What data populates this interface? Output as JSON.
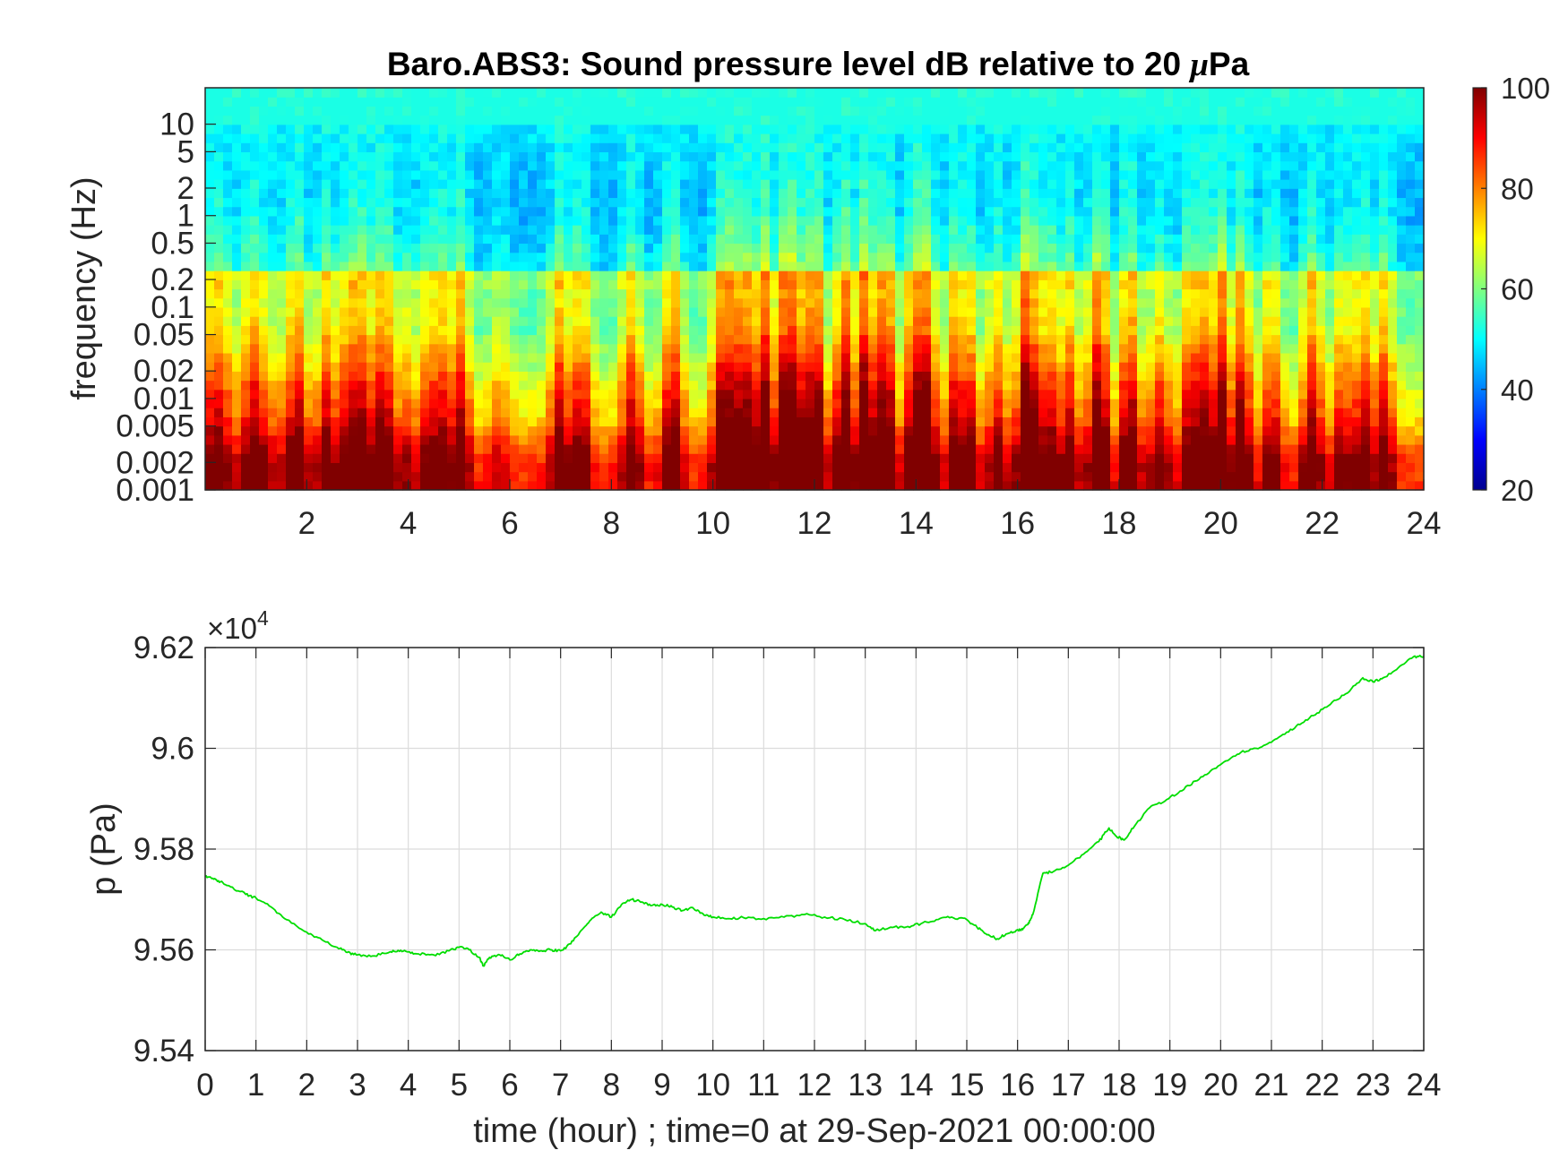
{
  "figure": {
    "background": "#ffffff"
  },
  "chart_data": [
    {
      "type": "heatmap",
      "title": "Baro.ABS3: Sound pressure level dB relative to 20 μPa",
      "title_parts": [
        "Baro.ABS3: Sound pressure level dB relative to 20 ",
        "μ",
        "Pa"
      ],
      "ylabel": "frequency (Hz)",
      "xlabel": "",
      "x_range": [
        0,
        24
      ],
      "x_ticks": [
        2,
        4,
        6,
        8,
        10,
        12,
        14,
        16,
        18,
        20,
        22,
        24
      ],
      "y_scale": "log",
      "y_range": [
        0.001,
        25
      ],
      "y_ticks": [
        0.001,
        0.002,
        0.005,
        0.01,
        0.02,
        0.05,
        0.1,
        0.2,
        0.5,
        1,
        2,
        5,
        10
      ],
      "y_tick_labels": [
        "0.001",
        "0.002",
        "0.005",
        "0.01",
        "0.02",
        "0.05",
        "0.1",
        "0.2",
        "0.5",
        "1",
        "2",
        "5",
        "10"
      ],
      "colormap": "jet",
      "colorbar": {
        "range": [
          20,
          100
        ],
        "ticks": [
          20,
          40,
          60,
          80,
          100
        ]
      },
      "grid": false,
      "activity_hours": [
        0.2,
        0.4,
        0.8,
        1.0,
        1.4,
        1.8,
        2.4,
        2.8,
        3.0,
        3.4,
        3.6,
        4.0,
        4.4,
        4.6,
        5.0,
        5.8,
        7.0,
        7.4,
        8.4,
        9.2,
        10.2,
        10.4,
        10.6,
        11.0,
        11.4,
        11.6,
        12.0,
        12.6,
        13.0,
        13.4,
        14.0,
        14.2,
        14.8,
        15.0,
        15.6,
        16.2,
        16.6,
        17.0,
        17.6,
        18.2,
        18.8,
        19.4,
        19.6,
        20.0,
        20.4,
        21.0,
        21.8,
        22.4,
        22.8,
        23.2
      ],
      "activity_levels": [
        82,
        72,
        74,
        82,
        68,
        84,
        80,
        78,
        88,
        84,
        80,
        70,
        76,
        82,
        84,
        66,
        82,
        80,
        80,
        84,
        90,
        94,
        92,
        94,
        92,
        96,
        94,
        92,
        96,
        92,
        94,
        92,
        84,
        82,
        76,
        98,
        82,
        80,
        92,
        86,
        76,
        82,
        88,
        92,
        86,
        78,
        82,
        76,
        80,
        80
      ]
    },
    {
      "type": "line",
      "title": "",
      "xlabel": "time (hour) ; time=0 at 29-Sep-2021 00:00:00",
      "ylabel": "p (Pa)",
      "x_range": [
        0,
        24
      ],
      "x_ticks": [
        0,
        1,
        2,
        3,
        4,
        5,
        6,
        7,
        8,
        9,
        10,
        11,
        12,
        13,
        14,
        15,
        16,
        17,
        18,
        19,
        20,
        21,
        22,
        23,
        24
      ],
      "y_range": [
        95400,
        96200
      ],
      "y_ticks": [
        95400,
        95600,
        95800,
        96000,
        96200
      ],
      "y_tick_labels": [
        "9.54",
        "9.56",
        "9.58",
        "9.6",
        "9.62"
      ],
      "y_exponent": "4",
      "y_exponent_prefix": "×10",
      "grid": true,
      "series": [
        {
          "color": "#00dd00",
          "x": [
            0,
            0.15,
            0.3,
            0.5,
            0.8,
            1,
            1.3,
            1.6,
            2,
            2.3,
            2.6,
            2.8,
            3,
            3.3,
            3.6,
            3.8,
            4,
            4.2,
            4.5,
            4.8,
            5,
            5.2,
            5.4,
            5.48,
            5.6,
            5.8,
            6,
            6.2,
            6.4,
            6.6,
            6.8,
            7,
            7.2,
            7.4,
            7.6,
            7.8,
            8,
            8.2,
            8.4,
            8.6,
            8.8,
            9,
            9.2,
            9.4,
            9.6,
            9.8,
            10,
            10.3,
            10.6,
            11,
            11.4,
            11.8,
            12.2,
            12.6,
            13,
            13.2,
            13.5,
            13.8,
            14.1,
            14.4,
            14.7,
            15,
            15.2,
            15.4,
            15.6,
            15.8,
            16,
            16.1,
            16.2,
            16.3,
            16.5,
            16.7,
            17,
            17.3,
            17.6,
            17.8,
            17.95,
            18.1,
            18.3,
            18.6,
            18.9,
            19.2,
            19.5,
            19.8,
            20.1,
            20.4,
            20.7,
            21,
            21.3,
            21.6,
            21.9,
            22.2,
            22.5,
            22.8,
            23,
            23.2,
            23.5,
            23.8,
            24
          ],
          "y": [
            95745,
            95742,
            95735,
            95725,
            95710,
            95703,
            95685,
            95660,
            95635,
            95620,
            95605,
            95595,
            95590,
            95588,
            95594,
            95599,
            95596,
            95592,
            95590,
            95598,
            95605,
            95600,
            95585,
            95568,
            95585,
            95590,
            95580,
            95592,
            95600,
            95598,
            95600,
            95598,
            95612,
            95638,
            95660,
            95675,
            95665,
            95690,
            95700,
            95695,
            95688,
            95690,
            95685,
            95678,
            95684,
            95672,
            95665,
            95662,
            95664,
            95662,
            95665,
            95670,
            95665,
            95660,
            95652,
            95638,
            95645,
            95645,
            95652,
            95660,
            95665,
            95660,
            95645,
            95630,
            95622,
            95632,
            95640,
            95640,
            95650,
            95670,
            95752,
            95755,
            95768,
            95790,
            95815,
            95842,
            95825,
            95818,
            95845,
            95882,
            95895,
            95915,
            95935,
            95955,
            95975,
            95992,
            96000,
            96012,
            96032,
            96050,
            96070,
            96092,
            96110,
            96140,
            96132,
            96140,
            96160,
            96182,
            96182
          ]
        }
      ]
    }
  ]
}
